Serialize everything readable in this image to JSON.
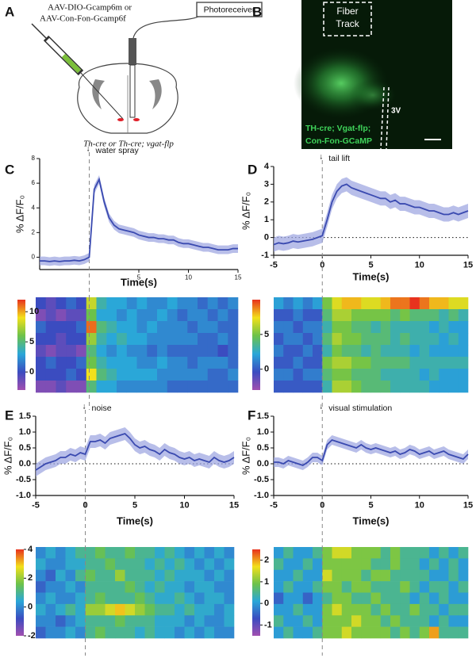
{
  "diagram": {
    "panel": "A",
    "virus_line1": "AAV-DIO-Gcamp6m or",
    "virus_line2": "AAV-Con-Fon-Gcamp6f",
    "device": "Photoreceiver",
    "genotype": "Th-cre or Th-cre; vgat-flp"
  },
  "image": {
    "panel": "B",
    "label_line1": "Fiber",
    "label_line2": "Track",
    "region": "3V",
    "caption_line1": "TH-cre; Vgat-flp;",
    "caption_line2": "Con-Fon-GCaMP"
  },
  "chart_data": [
    {
      "type": "line",
      "panel": "C",
      "annotation": "water spray",
      "xlabel": "Time(s)",
      "ylabel": "% ΔF/F₀",
      "color": "#3a4ab0",
      "band_color": "#9aa3e0",
      "xlim": [
        -5,
        15
      ],
      "xticks": [
        5,
        10,
        15
      ],
      "ylim": [
        -1,
        8
      ],
      "yticks": [
        0,
        2,
        4,
        6,
        8
      ],
      "onset": 0,
      "zero_line": false,
      "error": 0.35,
      "x": [
        -5,
        -4.5,
        -4,
        -3.5,
        -3,
        -2.5,
        -2,
        -1.5,
        -1,
        -0.5,
        0,
        0.5,
        1,
        1.5,
        2,
        2.5,
        3,
        3.5,
        4,
        4.5,
        5,
        5.5,
        6,
        6.5,
        7,
        7.5,
        8,
        8.5,
        9,
        9.5,
        10,
        10.5,
        11,
        11.5,
        12,
        12.5,
        13,
        13.5,
        14,
        14.5,
        15
      ],
      "values": [
        -0.3,
        -0.3,
        -0.35,
        -0.3,
        -0.35,
        -0.3,
        -0.3,
        -0.25,
        -0.3,
        -0.2,
        0,
        5.5,
        6.3,
        4.5,
        3.2,
        2.6,
        2.3,
        2.2,
        2.1,
        2.0,
        1.8,
        1.7,
        1.6,
        1.6,
        1.5,
        1.5,
        1.4,
        1.4,
        1.2,
        1.1,
        1.1,
        1.0,
        0.9,
        0.8,
        0.8,
        0.7,
        0.6,
        0.6,
        0.6,
        0.7,
        0.7
      ],
      "heatmap": {
        "clim": [
          -3,
          12
        ],
        "cticks": [
          0,
          5,
          10
        ],
        "values": [
          [
            0,
            -1,
            0,
            1,
            0,
            8,
            4,
            3,
            3,
            2,
            3,
            2,
            2,
            3,
            2,
            2,
            1,
            2,
            1,
            2
          ],
          [
            -2,
            -1,
            -2,
            -1,
            -1,
            6,
            3,
            3,
            2,
            3,
            2,
            2,
            3,
            2,
            1,
            2,
            2,
            1,
            2,
            1
          ],
          [
            1,
            0,
            0,
            0,
            1,
            11,
            5,
            4,
            3,
            3,
            2,
            3,
            2,
            2,
            2,
            1,
            2,
            2,
            1,
            1
          ],
          [
            0,
            0,
            -1,
            0,
            0,
            7,
            4,
            3,
            4,
            3,
            3,
            2,
            2,
            2,
            2,
            2,
            1,
            1,
            2,
            1
          ],
          [
            -1,
            -2,
            -1,
            -1,
            -2,
            5,
            3,
            2,
            3,
            2,
            2,
            1,
            2,
            1,
            1,
            1,
            1,
            1,
            0,
            1
          ],
          [
            0,
            1,
            0,
            0,
            1,
            6,
            4,
            3,
            3,
            3,
            2,
            2,
            3,
            2,
            2,
            1,
            2,
            2,
            2,
            1
          ],
          [
            0,
            0,
            0,
            1,
            0,
            9,
            5,
            4,
            3,
            3,
            3,
            3,
            2,
            2,
            2,
            2,
            2,
            1,
            1,
            2
          ],
          [
            -2,
            -2,
            -1,
            -2,
            -2,
            5,
            3,
            3,
            2,
            2,
            2,
            2,
            2,
            1,
            1,
            1,
            1,
            1,
            1,
            1
          ]
        ]
      }
    },
    {
      "type": "line",
      "panel": "D",
      "annotation": "tail lift",
      "xlabel": "Time(s)",
      "ylabel": "% ΔF/F₀",
      "color": "#3a4ab0",
      "band_color": "#9aa3e0",
      "xlim": [
        -5,
        15
      ],
      "xticks": [
        -5,
        0,
        5,
        10,
        15
      ],
      "ylim": [
        -1,
        4
      ],
      "yticks": [
        -1,
        0,
        1,
        2,
        3,
        4
      ],
      "onset": 0,
      "zero_line": true,
      "error": 0.4,
      "x": [
        -5,
        -4.5,
        -4,
        -3.5,
        -3,
        -2.5,
        -2,
        -1.5,
        -1,
        -0.5,
        0,
        0.5,
        1,
        1.5,
        2,
        2.5,
        3,
        3.5,
        4,
        4.5,
        5,
        5.5,
        6,
        6.5,
        7,
        7.5,
        8,
        8.5,
        9,
        9.5,
        10,
        10.5,
        11,
        11.5,
        12,
        12.5,
        13,
        13.5,
        14,
        14.5,
        15
      ],
      "values": [
        -0.4,
        -0.3,
        -0.35,
        -0.3,
        -0.2,
        -0.25,
        -0.2,
        -0.15,
        -0.1,
        0,
        0.1,
        1.0,
        2.0,
        2.6,
        2.9,
        3.0,
        2.8,
        2.7,
        2.6,
        2.5,
        2.4,
        2.3,
        2.2,
        2.2,
        2.0,
        2.1,
        1.9,
        1.9,
        1.8,
        1.7,
        1.7,
        1.6,
        1.5,
        1.5,
        1.4,
        1.3,
        1.3,
        1.4,
        1.3,
        1.4,
        1.5
      ],
      "heatmap": {
        "clim": [
          -3,
          10
        ],
        "cticks": [
          0,
          5
        ],
        "values": [
          [
            2,
            1,
            2,
            1,
            2,
            5,
            7,
            8,
            8,
            7,
            7,
            8,
            9,
            9,
            10,
            9,
            8,
            8,
            7,
            7
          ],
          [
            0,
            0,
            1,
            0,
            0,
            4,
            6,
            6,
            5,
            5,
            5,
            5,
            4,
            5,
            4,
            4,
            4,
            3,
            4,
            3
          ],
          [
            1,
            1,
            0,
            1,
            1,
            3,
            5,
            5,
            4,
            4,
            3,
            4,
            3,
            3,
            3,
            3,
            2,
            3,
            2,
            2
          ],
          [
            0,
            1,
            1,
            0,
            1,
            4,
            6,
            5,
            5,
            4,
            4,
            4,
            3,
            4,
            3,
            3,
            3,
            2,
            3,
            2
          ],
          [
            1,
            0,
            0,
            1,
            0,
            3,
            5,
            4,
            4,
            3,
            4,
            3,
            3,
            3,
            2,
            3,
            2,
            2,
            2,
            2
          ],
          [
            0,
            0,
            1,
            0,
            0,
            5,
            6,
            6,
            5,
            5,
            4,
            4,
            4,
            4,
            3,
            3,
            3,
            3,
            3,
            3
          ],
          [
            1,
            1,
            0,
            1,
            1,
            4,
            5,
            5,
            4,
            4,
            4,
            3,
            3,
            3,
            3,
            2,
            3,
            2,
            2,
            2
          ],
          [
            0,
            0,
            0,
            0,
            0,
            3,
            6,
            6,
            5,
            4,
            4,
            4,
            3,
            3,
            3,
            3,
            2,
            2,
            2,
            2
          ]
        ]
      }
    },
    {
      "type": "line",
      "panel": "E",
      "annotation": "noise",
      "xlabel": "Time(s)",
      "ylabel": "% ΔF/F₀",
      "color": "#3a4ab0",
      "band_color": "#9aa3e0",
      "xlim": [
        -5,
        15
      ],
      "xticks": [
        -5,
        0,
        5,
        10,
        15
      ],
      "ylim": [
        -1,
        1.5
      ],
      "yticks": [
        {
          "value": -1,
          "label": "-1.0"
        },
        -0.5,
        {
          "value": 0,
          "label": "0.0"
        },
        0.5,
        {
          "value": 1,
          "label": "1.0"
        },
        1.5
      ],
      "onset": 0,
      "zero_line": true,
      "error": 0.2,
      "x": [
        -5,
        -4.5,
        -4,
        -3.5,
        -3,
        -2.5,
        -2,
        -1.5,
        -1,
        -0.5,
        0,
        0.5,
        1,
        1.5,
        2,
        2.5,
        3,
        3.5,
        4,
        4.5,
        5,
        5.5,
        6,
        6.5,
        7,
        7.5,
        8,
        8.5,
        9,
        9.5,
        10,
        10.5,
        11,
        11.5,
        12,
        12.5,
        13,
        13.5,
        14,
        14.5,
        15
      ],
      "values": [
        -0.2,
        -0.1,
        0,
        0.05,
        0.1,
        0.2,
        0.2,
        0.3,
        0.25,
        0.35,
        0.3,
        0.7,
        0.7,
        0.75,
        0.65,
        0.8,
        0.85,
        0.9,
        0.95,
        0.8,
        0.6,
        0.5,
        0.55,
        0.45,
        0.4,
        0.3,
        0.45,
        0.35,
        0.3,
        0.2,
        0.15,
        0.2,
        0.1,
        0.15,
        0.1,
        0.05,
        0.2,
        0.1,
        0.05,
        0.1,
        0.2
      ],
      "heatmap": {
        "clim": [
          -2,
          4
        ],
        "cticks": [
          -2,
          0,
          2,
          4
        ],
        "values": [
          [
            0,
            0.5,
            0,
            0.5,
            1,
            1,
            1.5,
            1,
            1,
            1.5,
            1,
            1,
            0.5,
            1,
            0.5,
            0,
            0.5,
            0,
            0.5,
            0
          ],
          [
            0.5,
            0,
            0,
            0.5,
            0.5,
            1,
            1,
            1.5,
            1,
            1,
            1,
            0.5,
            1,
            0.5,
            1,
            0.5,
            0,
            0.5,
            0,
            0.5
          ],
          [
            0,
            -0.5,
            0.5,
            0,
            1,
            1.5,
            1,
            1,
            2,
            1,
            1,
            1,
            0.5,
            1,
            0.5,
            0.5,
            0.5,
            0,
            0.5,
            0
          ],
          [
            -0.5,
            0,
            0,
            0.5,
            0,
            1,
            1,
            1,
            1,
            1.5,
            1,
            0.5,
            1,
            0.5,
            0.5,
            0,
            0.5,
            0.5,
            0,
            0
          ],
          [
            0,
            0.5,
            0,
            0,
            0.5,
            1,
            1.5,
            1,
            1,
            1,
            1.5,
            1,
            0.5,
            0.5,
            1,
            0.5,
            0,
            0.5,
            0.5,
            0
          ],
          [
            0.5,
            0,
            0.5,
            1,
            0.5,
            2,
            2,
            2.5,
            3,
            2.5,
            2,
            1.5,
            1,
            1,
            0.5,
            1,
            0.5,
            0.5,
            0,
            0.5
          ],
          [
            0,
            0,
            -0.5,
            0,
            0.5,
            1,
            1,
            1,
            1.5,
            1,
            1,
            1,
            0.5,
            0.5,
            0.5,
            0,
            0.5,
            0,
            0,
            0.5
          ],
          [
            -0.5,
            0,
            0,
            0.5,
            0,
            1,
            1.5,
            1,
            1,
            1,
            0.5,
            1,
            0.5,
            0.5,
            0,
            0.5,
            0,
            0.5,
            0,
            0
          ]
        ]
      }
    },
    {
      "type": "line",
      "panel": "F",
      "annotation": "visual stimulation",
      "xlabel": "Time(s)",
      "ylabel": "% ΔF/F₀",
      "color": "#3a4ab0",
      "band_color": "#9aa3e0",
      "xlim": [
        -5,
        15
      ],
      "xticks": [
        -5,
        0,
        5,
        10,
        15
      ],
      "ylim": [
        -1,
        1.5
      ],
      "yticks": [
        {
          "value": -1,
          "label": "-1.0"
        },
        -0.5,
        {
          "value": 0,
          "label": "0.0"
        },
        0.5,
        {
          "value": 1,
          "label": "1.0"
        },
        1.5
      ],
      "onset": 0,
      "zero_line": true,
      "error": 0.15,
      "x": [
        -5,
        -4.5,
        -4,
        -3.5,
        -3,
        -2.5,
        -2,
        -1.5,
        -1,
        -0.5,
        0,
        0.5,
        1,
        1.5,
        2,
        2.5,
        3,
        3.5,
        4,
        4.5,
        5,
        5.5,
        6,
        6.5,
        7,
        7.5,
        8,
        8.5,
        9,
        9.5,
        10,
        10.5,
        11,
        11.5,
        12,
        12.5,
        13,
        13.5,
        14,
        14.5,
        15
      ],
      "values": [
        0.05,
        0.05,
        0,
        0.1,
        0.05,
        0,
        -0.05,
        0.05,
        0.2,
        0.2,
        0.1,
        0.6,
        0.75,
        0.7,
        0.65,
        0.6,
        0.55,
        0.5,
        0.6,
        0.5,
        0.45,
        0.5,
        0.45,
        0.4,
        0.35,
        0.4,
        0.3,
        0.35,
        0.45,
        0.4,
        0.3,
        0.35,
        0.4,
        0.3,
        0.35,
        0.4,
        0.3,
        0.25,
        0.2,
        0.15,
        0.3
      ],
      "heatmap": {
        "clim": [
          -1.5,
          2.5
        ],
        "cticks": [
          -1,
          0,
          1,
          2
        ],
        "values": [
          [
            0,
            0.5,
            0,
            0,
            0.5,
            1,
            1.5,
            1.5,
            1,
            1,
            1,
            0.5,
            1,
            0.5,
            0.5,
            0.5,
            0,
            0.5,
            0,
            0.5
          ],
          [
            0.5,
            0,
            0,
            0.5,
            0,
            1,
            1,
            1,
            1,
            1,
            0.5,
            0.5,
            1,
            0.5,
            0.5,
            0,
            0.5,
            0,
            0.5,
            0
          ],
          [
            0,
            0,
            0.5,
            0,
            0,
            1.5,
            1,
            1,
            1,
            0.5,
            1,
            1,
            0.5,
            0.5,
            0.5,
            0.5,
            0,
            0,
            0.5,
            0
          ],
          [
            0,
            0.5,
            0,
            0,
            0.5,
            1,
            1,
            0.5,
            1,
            1,
            0.5,
            0.5,
            0.5,
            1,
            0.5,
            0,
            0.5,
            0.5,
            0,
            0.5
          ],
          [
            -0.5,
            0,
            0,
            -0.5,
            0,
            0.5,
            1,
            1,
            0.5,
            0.5,
            1,
            0.5,
            0.5,
            0.5,
            0,
            0.5,
            0,
            0.5,
            0,
            0
          ],
          [
            0,
            0,
            0.5,
            0,
            0,
            1,
            1.5,
            1,
            1,
            1,
            0.5,
            1,
            0.5,
            0.5,
            1,
            0.5,
            0.5,
            0,
            0.5,
            0.5
          ],
          [
            0.5,
            0,
            0,
            0.5,
            0,
            1,
            1,
            1,
            1.5,
            1,
            1,
            0.5,
            1,
            0.5,
            0.5,
            0.5,
            0,
            0.5,
            0,
            0
          ],
          [
            0,
            0.5,
            0,
            0,
            0.5,
            1,
            1,
            1.5,
            1,
            1,
            1,
            1,
            0.5,
            1,
            0.5,
            1,
            2,
            0.5,
            0.5,
            0.5
          ]
        ]
      }
    }
  ]
}
